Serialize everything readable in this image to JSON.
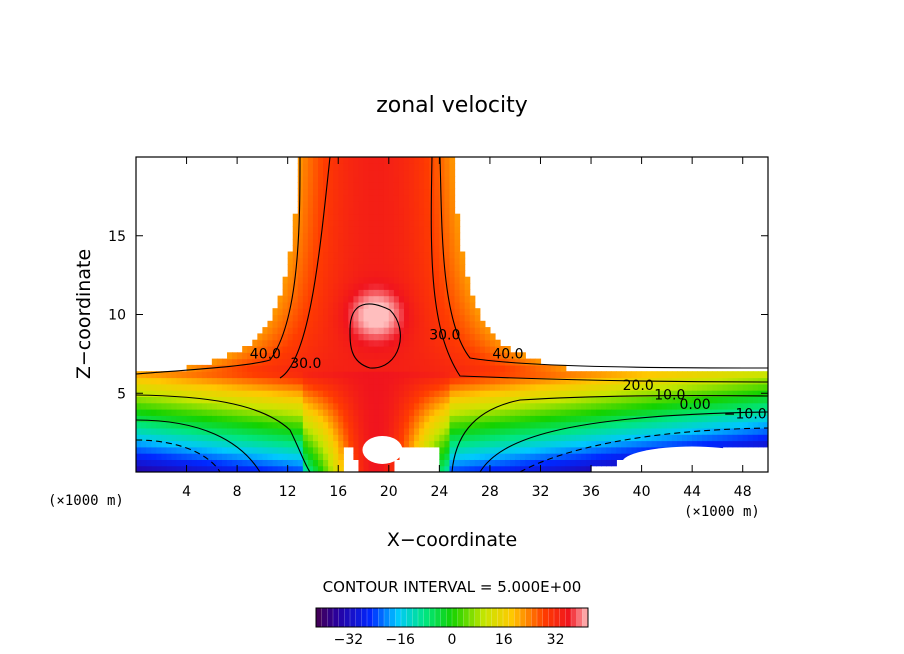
{
  "chart_data": {
    "type": "heatmap",
    "title": "zonal velocity",
    "xlabel": "X−coordinate",
    "ylabel": "Z−coordinate",
    "x_unit_left": "(×1000 m)",
    "x_unit_right": "(×1000 m)",
    "xlim": [
      0,
      50
    ],
    "ylim": [
      0,
      20
    ],
    "x_ticks": [
      "4",
      "8",
      "12",
      "16",
      "20",
      "24",
      "28",
      "32",
      "36",
      "40",
      "44",
      "48"
    ],
    "y_ticks": [
      "5",
      "10",
      "15"
    ],
    "contour_interval_text": "CONTOUR INTERVAL = 5.000E+00",
    "contour_interval": 5.0,
    "contour_labels": [
      {
        "text": "40.0",
        "x": 9.0,
        "y": 7.2
      },
      {
        "text": "30.0",
        "x": 12.2,
        "y": 6.6
      },
      {
        "text": "30.0",
        "x": 23.2,
        "y": 8.4
      },
      {
        "text": "40.0",
        "x": 28.2,
        "y": 7.2
      },
      {
        "text": "20.0",
        "x": 38.5,
        "y": 5.2
      },
      {
        "text": "10.0",
        "x": 41.0,
        "y": 4.6
      },
      {
        "text": "0.00",
        "x": 43.0,
        "y": 4.0
      },
      {
        "text": "−10.0",
        "x": 46.5,
        "y": 3.4
      }
    ],
    "colorbar": {
      "min": -42,
      "max": 42,
      "tick_labels": [
        "−32",
        "−16",
        "0",
        "16",
        "32"
      ],
      "tick_values": [
        -32,
        -16,
        0,
        16,
        32
      ]
    },
    "field_extent": {
      "min": -40,
      "max": 45
    }
  }
}
